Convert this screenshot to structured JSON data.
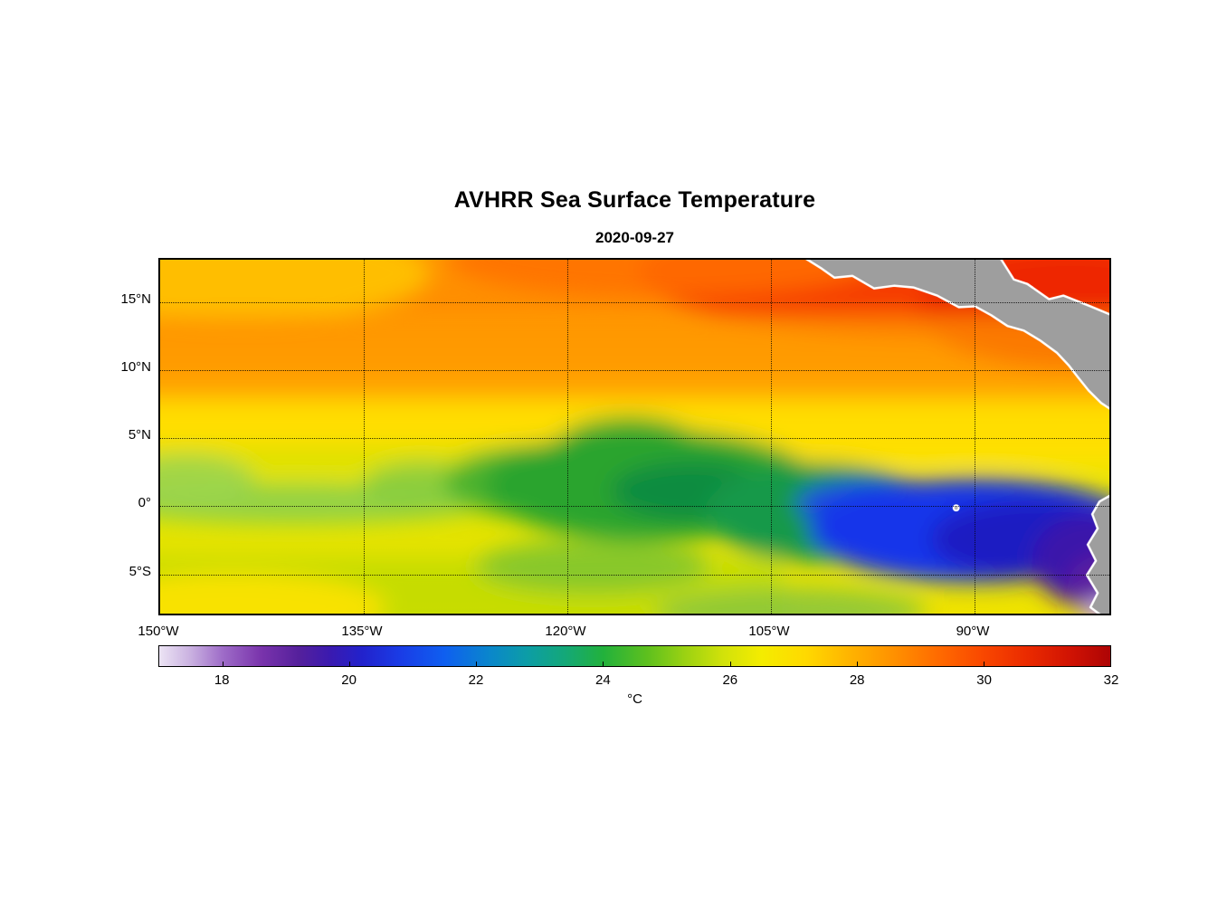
{
  "chart_data": {
    "type": "heatmap",
    "title": "AVHRR Sea Surface Temperature",
    "subtitle": "2020-09-27",
    "grid": "dotted, on",
    "x_axis": {
      "range": [
        -150,
        -79.8
      ],
      "ticks": [
        {
          "lon": -150,
          "label": "150°W"
        },
        {
          "lon": -135,
          "label": "135°W"
        },
        {
          "lon": -120,
          "label": "120°W"
        },
        {
          "lon": -105,
          "label": "105°W"
        },
        {
          "lon": -90,
          "label": "90°W"
        }
      ]
    },
    "y_axis": {
      "range": [
        -8.15,
        18.12
      ],
      "ticks": [
        {
          "lat": 15,
          "label": "15°N"
        },
        {
          "lat": 10,
          "label": "10°N"
        },
        {
          "lat": 5,
          "label": "5°N"
        },
        {
          "lat": 0,
          "label": "0°"
        },
        {
          "lat": -5,
          "label": "5°S"
        }
      ]
    },
    "colorbar": {
      "unit": "°C",
      "min": 17,
      "max": 32,
      "ticks": [
        18,
        20,
        22,
        24,
        26,
        28,
        30,
        32
      ],
      "stops": [
        {
          "v": 17.0,
          "c": "#ece4f4"
        },
        {
          "v": 17.5,
          "c": "#c9b0e0"
        },
        {
          "v": 18.0,
          "c": "#9e6cc8"
        },
        {
          "v": 18.6,
          "c": "#7a34ac"
        },
        {
          "v": 19.2,
          "c": "#55209c"
        },
        {
          "v": 19.7,
          "c": "#3a1ab0"
        },
        {
          "v": 20.2,
          "c": "#2222cc"
        },
        {
          "v": 20.8,
          "c": "#1a3ce6"
        },
        {
          "v": 21.5,
          "c": "#0f5ff0"
        },
        {
          "v": 22.2,
          "c": "#0a86cc"
        },
        {
          "v": 22.8,
          "c": "#0c9da6"
        },
        {
          "v": 23.4,
          "c": "#14a878"
        },
        {
          "v": 24.0,
          "c": "#22b13c"
        },
        {
          "v": 24.7,
          "c": "#5ec01e"
        },
        {
          "v": 25.3,
          "c": "#9cd212"
        },
        {
          "v": 25.9,
          "c": "#d2e20a"
        },
        {
          "v": 26.5,
          "c": "#f4ec00"
        },
        {
          "v": 27.2,
          "c": "#ffd900"
        },
        {
          "v": 27.9,
          "c": "#ffb300"
        },
        {
          "v": 28.6,
          "c": "#ff9000"
        },
        {
          "v": 29.3,
          "c": "#ff6a00"
        },
        {
          "v": 30.0,
          "c": "#f94700"
        },
        {
          "v": 30.7,
          "c": "#ea2a00"
        },
        {
          "v": 31.4,
          "c": "#cf1203"
        },
        {
          "v": 32.0,
          "c": "#ad0405"
        }
      ]
    },
    "land": {
      "fill_color": "#9e9e9e",
      "coastline_color": "#ffffff",
      "land_masses": [
        "Mexico / Central America (upper right, separating Pacific from Caribbean)",
        "South America, Ecuador-Peru coast (right edge, south of equator)",
        "Galápagos Islands (small, near 90°W, 0°)"
      ]
    },
    "sst_regions": [
      {
        "area": "North of 8°N (warm pool band)",
        "sst_c": "27-30"
      },
      {
        "area": "Top-right, off Central America / Caribbean",
        "sst_c": "29-31"
      },
      {
        "area": "Band near 5-7°N across basin",
        "sst_c": "26-27 (yellow)"
      },
      {
        "area": "Equatorial cold tongue 135-105°W",
        "sst_c": "22-24 (green)"
      },
      {
        "area": "Equatorial / SE Pacific 105-85°W",
        "sst_c": "19-21 (blue)"
      },
      {
        "area": "Peru coastal upwelling, bottom-right",
        "sst_c": "17-19 (purple/lavender)"
      },
      {
        "area": "South of 5°S west of 115°W",
        "sst_c": "24-26 (yellow-green)"
      }
    ]
  }
}
